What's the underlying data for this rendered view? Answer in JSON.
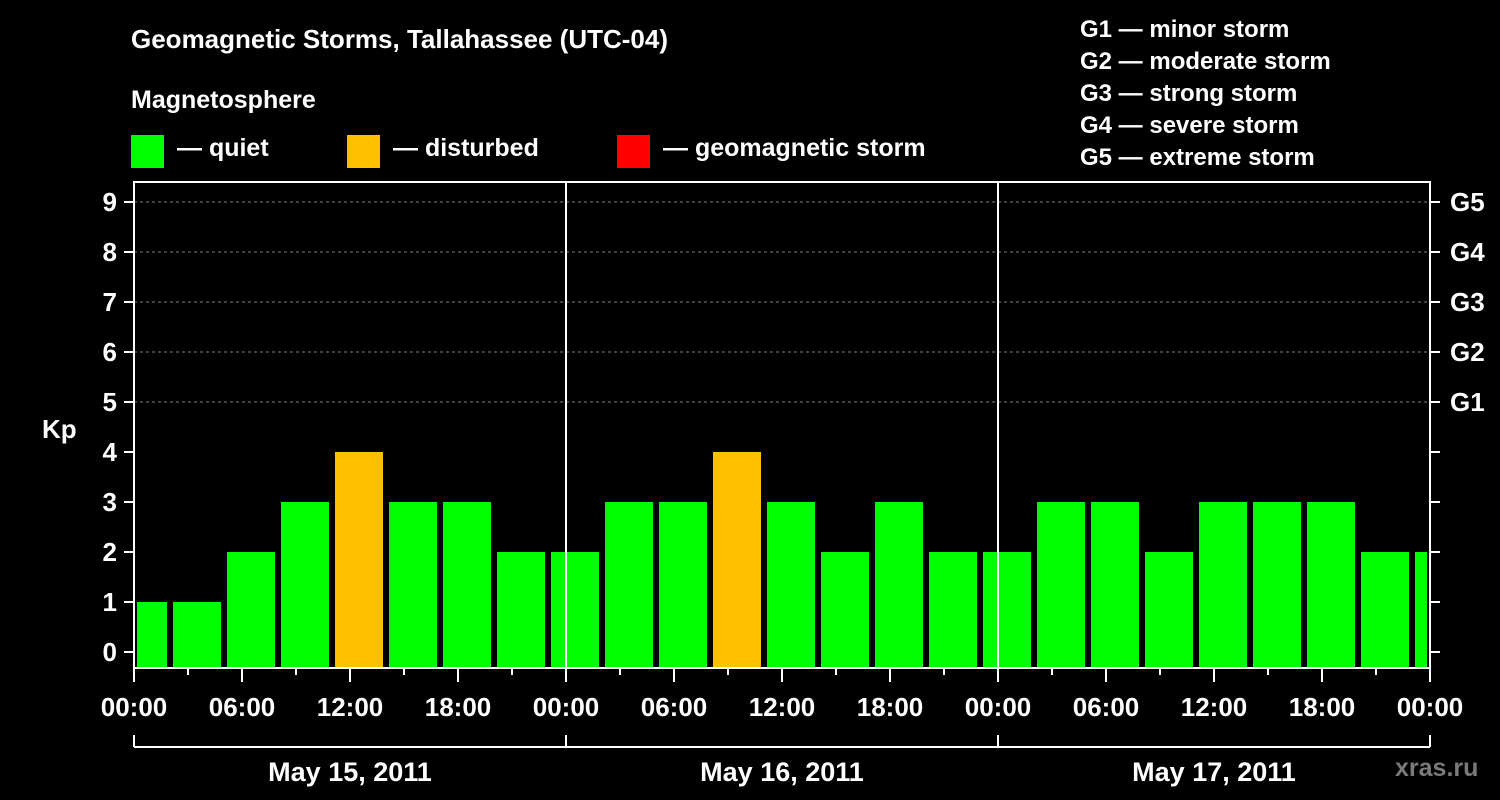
{
  "title": "Geomagnetic Storms, Tallahassee (UTC-04)",
  "subtitle": "Magnetosphere",
  "legend": [
    {
      "label": "— quiet",
      "color": "#00ff00"
    },
    {
      "label": "— disturbed",
      "color": "#ffc000"
    },
    {
      "label": "— geomagnetic storm",
      "color": "#ff0000"
    }
  ],
  "storm_scale": [
    "G1 — minor storm",
    "G2 — moderate storm",
    "G3 — strong storm",
    "G4 — severe storm",
    "G5 — extreme storm"
  ],
  "watermark": "xras.ru",
  "chart_data": {
    "type": "bar",
    "ylabel": "Kp",
    "ylim": [
      0,
      9
    ],
    "y_ticks": [
      "0",
      "1",
      "2",
      "3",
      "4",
      "5",
      "6",
      "7",
      "8",
      "9"
    ],
    "right_axis_labels": [
      {
        "kp": 5,
        "label": "G1"
      },
      {
        "kp": 6,
        "label": "G2"
      },
      {
        "kp": 7,
        "label": "G3"
      },
      {
        "kp": 8,
        "label": "G4"
      },
      {
        "kp": 9,
        "label": "G5"
      }
    ],
    "x_tick_labels": [
      "00:00",
      "06:00",
      "12:00",
      "18:00",
      "00:00",
      "06:00",
      "12:00",
      "18:00",
      "00:00",
      "06:00",
      "12:00",
      "18:00",
      "00:00"
    ],
    "days": [
      "May 15, 2011",
      "May 16, 2011",
      "May 17, 2011"
    ],
    "grid": true,
    "colors": {
      "quiet": "#00ff00",
      "disturbed": "#ffc000",
      "storm": "#ff0000"
    },
    "bars": [
      {
        "start_hour": 0,
        "end_hour": 2,
        "kp": 1,
        "level": "quiet"
      },
      {
        "start_hour": 2,
        "end_hour": 5,
        "kp": 1,
        "level": "quiet"
      },
      {
        "start_hour": 5,
        "end_hour": 8,
        "kp": 2,
        "level": "quiet"
      },
      {
        "start_hour": 8,
        "end_hour": 11,
        "kp": 3,
        "level": "quiet"
      },
      {
        "start_hour": 11,
        "end_hour": 14,
        "kp": 4,
        "level": "disturbed"
      },
      {
        "start_hour": 14,
        "end_hour": 17,
        "kp": 3,
        "level": "quiet"
      },
      {
        "start_hour": 17,
        "end_hour": 20,
        "kp": 3,
        "level": "quiet"
      },
      {
        "start_hour": 20,
        "end_hour": 23,
        "kp": 2,
        "level": "quiet"
      },
      {
        "start_hour": 23,
        "end_hour": 26,
        "kp": 2,
        "level": "quiet"
      },
      {
        "start_hour": 26,
        "end_hour": 29,
        "kp": 3,
        "level": "quiet"
      },
      {
        "start_hour": 29,
        "end_hour": 32,
        "kp": 3,
        "level": "quiet"
      },
      {
        "start_hour": 32,
        "end_hour": 35,
        "kp": 4,
        "level": "disturbed"
      },
      {
        "start_hour": 35,
        "end_hour": 38,
        "kp": 3,
        "level": "quiet"
      },
      {
        "start_hour": 38,
        "end_hour": 41,
        "kp": 2,
        "level": "quiet"
      },
      {
        "start_hour": 41,
        "end_hour": 44,
        "kp": 3,
        "level": "quiet"
      },
      {
        "start_hour": 44,
        "end_hour": 47,
        "kp": 2,
        "level": "quiet"
      },
      {
        "start_hour": 47,
        "end_hour": 50,
        "kp": 2,
        "level": "quiet"
      },
      {
        "start_hour": 50,
        "end_hour": 53,
        "kp": 3,
        "level": "quiet"
      },
      {
        "start_hour": 53,
        "end_hour": 56,
        "kp": 3,
        "level": "quiet"
      },
      {
        "start_hour": 56,
        "end_hour": 59,
        "kp": 2,
        "level": "quiet"
      },
      {
        "start_hour": 59,
        "end_hour": 62,
        "kp": 3,
        "level": "quiet"
      },
      {
        "start_hour": 62,
        "end_hour": 65,
        "kp": 3,
        "level": "quiet"
      },
      {
        "start_hour": 65,
        "end_hour": 68,
        "kp": 3,
        "level": "quiet"
      },
      {
        "start_hour": 68,
        "end_hour": 71,
        "kp": 2,
        "level": "quiet"
      },
      {
        "start_hour": 71,
        "end_hour": 72,
        "kp": 2,
        "level": "quiet"
      }
    ]
  }
}
